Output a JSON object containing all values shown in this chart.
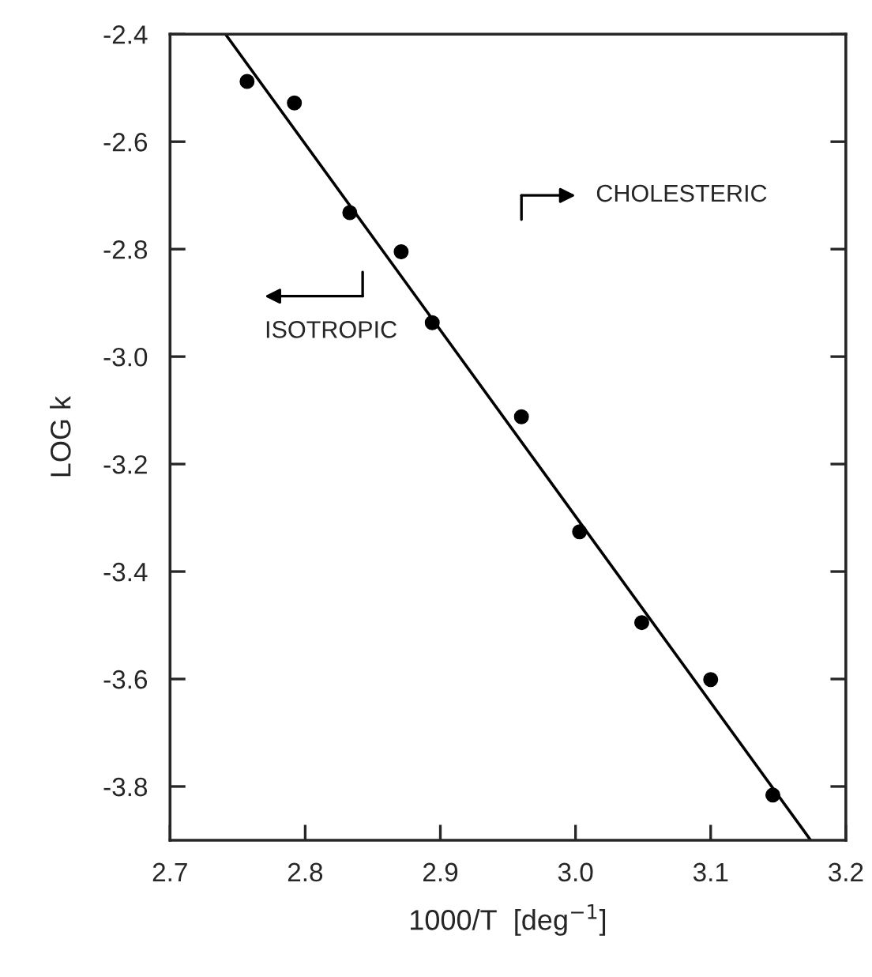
{
  "chart_data": {
    "type": "scatter",
    "xlabel": "1000/T  [deg$^{−1}$]",
    "ylabel": "LOG k",
    "series": [
      {
        "color": "#000000",
        "marker": "circle",
        "x": [
          2.757,
          2.792,
          2.833,
          2.871,
          2.894,
          2.96,
          3.003,
          3.049,
          3.1,
          3.146
        ],
        "values": [
          -2.488,
          -2.528,
          -2.732,
          -2.805,
          -2.937,
          -3.112,
          -3.326,
          -3.495,
          -3.601,
          -3.816
        ]
      },
      {
        "type": "line",
        "color": "#000000",
        "x": [
          2.741,
          3.174
        ],
        "values": [
          -2.4,
          -3.9
        ]
      }
    ],
    "annotations": [
      "CHOLESTERIC",
      "ISOTROPIC"
    ],
    "xlim": [
      2.7,
      3.2
    ],
    "xticks": [
      2.7,
      2.8,
      2.9,
      {
        "value": 3.0,
        "label": "3.0"
      },
      3.1,
      3.2
    ],
    "ylim": [
      -3.9,
      -2.4
    ],
    "yticks": [
      -2.4,
      -2.6,
      -2.8,
      {
        "value": -3.0,
        "label": "-3.0"
      },
      -3.2,
      -3.4,
      -3.6,
      -3.8
    ],
    "grid": false
  }
}
